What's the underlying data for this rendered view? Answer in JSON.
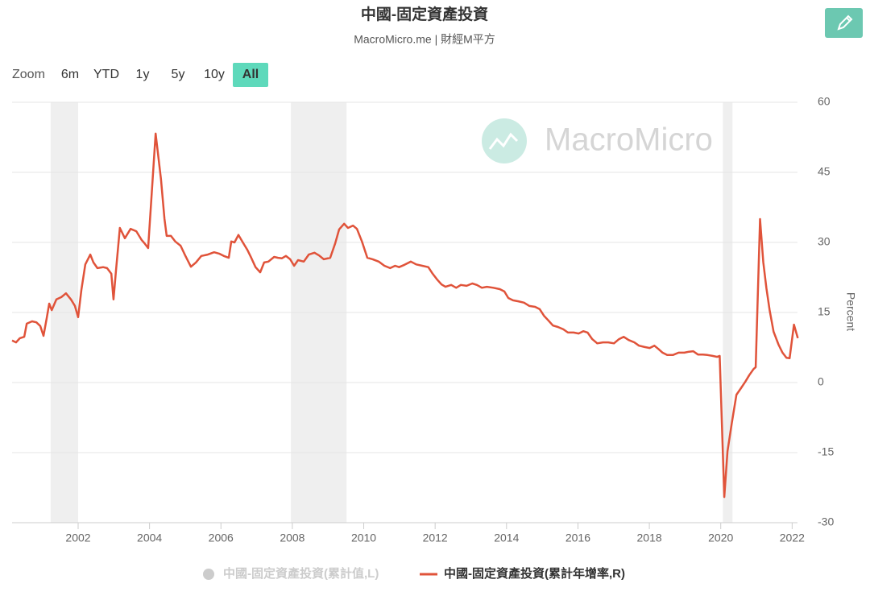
{
  "chart_data": {
    "type": "line",
    "title": "中國-固定資產投資",
    "subtitle": "MacroMicro.me | 財經M平方",
    "watermark": "MacroMicro",
    "controls": {
      "zoom_label": "Zoom",
      "ranges": [
        "6m",
        "YTD",
        "1y",
        "5y",
        "10y",
        "All"
      ],
      "selected": "All"
    },
    "y2_label": "Percent",
    "xlim": [
      2000.15,
      2022.15
    ],
    "xticks": [
      2002,
      2004,
      2006,
      2008,
      2010,
      2012,
      2014,
      2016,
      2018,
      2020,
      2022
    ],
    "y2lim": [
      -30,
      60
    ],
    "y2ticks": [
      -30,
      -15,
      0,
      15,
      30,
      45,
      60
    ],
    "grid": true,
    "shaded_periods": [
      [
        2001.23,
        2002.0
      ],
      [
        2007.96,
        2009.52
      ],
      [
        2020.06,
        2020.33
      ]
    ],
    "hidden_series": [
      {
        "name": "中國-固定資產投資(累計值,L)",
        "color": "#cccccc"
      }
    ],
    "series": [
      {
        "name": "中國-固定資產投資(累計年增率,R)",
        "color": "#e0533a",
        "axis": "y2",
        "x": [
          2000.15,
          2000.26,
          2000.37,
          2000.49,
          2000.56,
          2000.71,
          2000.83,
          2000.94,
          2001.03,
          2001.12,
          2001.19,
          2001.26,
          2001.39,
          2001.53,
          2001.66,
          2001.8,
          2001.91,
          2002.0,
          2002.09,
          2002.2,
          2002.34,
          2002.43,
          2002.54,
          2002.7,
          2002.81,
          2002.93,
          2002.99,
          2003.06,
          2003.17,
          2003.31,
          2003.47,
          2003.63,
          2003.78,
          2003.87,
          2003.96,
          2004.17,
          2004.32,
          2004.42,
          2004.48,
          2004.6,
          2004.72,
          2004.87,
          2005.0,
          2005.16,
          2005.3,
          2005.45,
          2005.63,
          2005.81,
          2005.95,
          2006.08,
          2006.22,
          2006.29,
          2006.38,
          2006.49,
          2006.63,
          2006.74,
          2006.85,
          2006.97,
          2007.1,
          2007.21,
          2007.33,
          2007.49,
          2007.6,
          2007.71,
          2007.82,
          2007.94,
          2008.05,
          2008.16,
          2008.32,
          2008.46,
          2008.62,
          2008.75,
          2008.88,
          2009.06,
          2009.2,
          2009.31,
          2009.45,
          2009.56,
          2009.7,
          2009.81,
          2009.95,
          2010.1,
          2010.25,
          2010.42,
          2010.58,
          2010.74,
          2010.88,
          2010.99,
          2011.14,
          2011.32,
          2011.47,
          2011.64,
          2011.81,
          2011.93,
          2012.05,
          2012.18,
          2012.29,
          2012.45,
          2012.59,
          2012.72,
          2012.88,
          2013.04,
          2013.17,
          2013.31,
          2013.45,
          2013.63,
          2013.81,
          2013.94,
          2014.05,
          2014.18,
          2014.33,
          2014.49,
          2014.64,
          2014.8,
          2014.93,
          2015.05,
          2015.16,
          2015.3,
          2015.44,
          2015.59,
          2015.72,
          2015.88,
          2016.02,
          2016.15,
          2016.27,
          2016.4,
          2016.54,
          2016.7,
          2016.85,
          2017.01,
          2017.15,
          2017.28,
          2017.42,
          2017.58,
          2017.71,
          2017.87,
          2018.01,
          2018.14,
          2018.25,
          2018.37,
          2018.5,
          2018.66,
          2018.82,
          2018.98,
          2019.11,
          2019.23,
          2019.36,
          2019.5,
          2019.63,
          2019.77,
          2019.9,
          2019.97,
          2020.1,
          2020.19,
          2020.31,
          2020.44,
          2020.56,
          2020.69,
          2020.8,
          2020.92,
          2020.98,
          2021.1,
          2021.19,
          2021.28,
          2021.37,
          2021.48,
          2021.62,
          2021.73,
          2021.84,
          2021.93,
          2022.05,
          2022.16
        ],
        "values": [
          9.0,
          8.6,
          9.5,
          9.8,
          12.6,
          13.1,
          12.9,
          12.1,
          10.0,
          13.8,
          16.9,
          15.5,
          17.8,
          18.3,
          19.1,
          17.8,
          16.4,
          14.0,
          19.8,
          25.3,
          27.4,
          25.7,
          24.5,
          24.7,
          24.5,
          23.3,
          17.8,
          24.0,
          33.1,
          30.9,
          32.9,
          32.4,
          30.5,
          29.7,
          28.8,
          53.3,
          43.6,
          35.0,
          31.4,
          31.4,
          30.2,
          29.3,
          27.2,
          24.8,
          25.7,
          27.1,
          27.4,
          27.9,
          27.6,
          27.1,
          26.7,
          30.2,
          30.0,
          31.6,
          29.8,
          28.4,
          26.7,
          24.7,
          23.6,
          25.7,
          25.9,
          26.9,
          26.7,
          26.6,
          27.1,
          26.4,
          25.0,
          26.2,
          25.9,
          27.4,
          27.8,
          27.2,
          26.4,
          26.7,
          29.8,
          32.8,
          34.0,
          33.1,
          33.6,
          32.9,
          30.2,
          26.7,
          26.4,
          25.9,
          25.0,
          24.5,
          25.0,
          24.7,
          25.2,
          25.9,
          25.3,
          25.0,
          24.7,
          23.3,
          22.1,
          21.0,
          20.5,
          20.9,
          20.3,
          20.9,
          20.7,
          21.2,
          20.9,
          20.3,
          20.5,
          20.3,
          20.0,
          19.5,
          18.1,
          17.6,
          17.4,
          17.1,
          16.4,
          16.2,
          15.7,
          14.3,
          13.4,
          12.2,
          11.9,
          11.4,
          10.7,
          10.7,
          10.5,
          11.0,
          10.7,
          9.3,
          8.4,
          8.6,
          8.6,
          8.4,
          9.3,
          9.8,
          9.1,
          8.6,
          7.9,
          7.6,
          7.4,
          7.9,
          7.2,
          6.4,
          5.9,
          5.9,
          6.4,
          6.4,
          6.6,
          6.7,
          6.0,
          6.0,
          5.9,
          5.7,
          5.5,
          5.7,
          -24.5,
          -14.7,
          -8.6,
          -2.6,
          -1.3,
          0.2,
          1.6,
          2.9,
          3.3,
          35.0,
          25.8,
          20.2,
          15.5,
          10.9,
          8.1,
          6.4,
          5.3,
          5.2,
          12.4,
          9.5
        ]
      }
    ]
  }
}
